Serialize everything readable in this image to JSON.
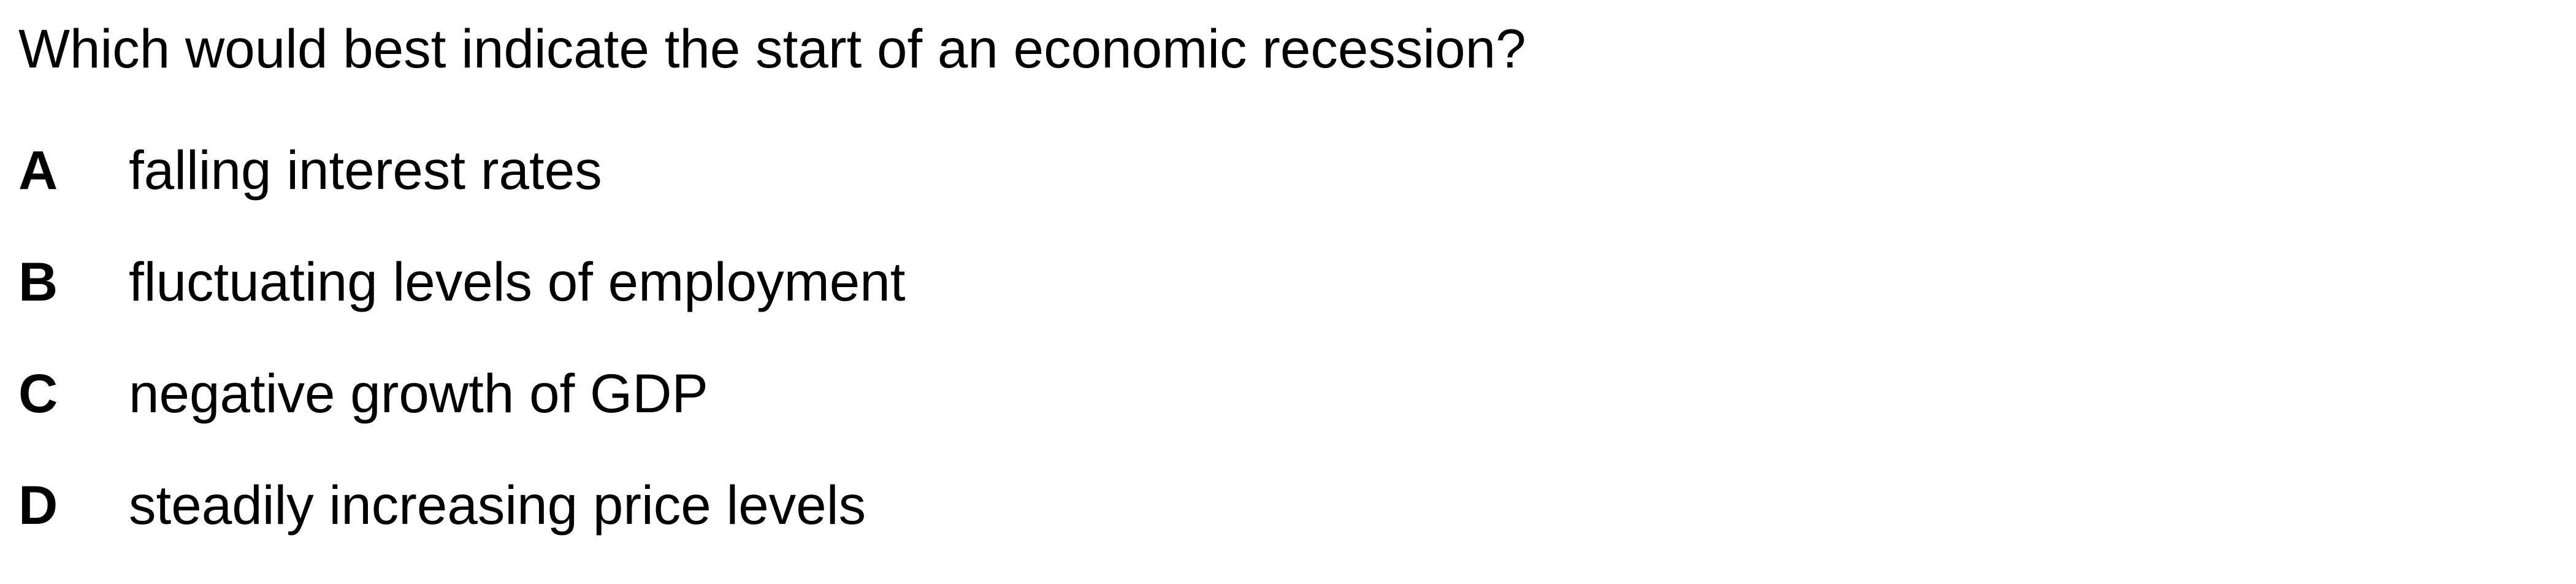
{
  "question": {
    "text": "Which would best indicate the start of an economic recession?"
  },
  "options": [
    {
      "letter": "A",
      "text": "falling interest rates"
    },
    {
      "letter": "B",
      "text": "fluctuating levels of employment"
    },
    {
      "letter": "C",
      "text": "negative growth of GDP"
    },
    {
      "letter": "D",
      "text": "steadily increasing price levels"
    }
  ]
}
